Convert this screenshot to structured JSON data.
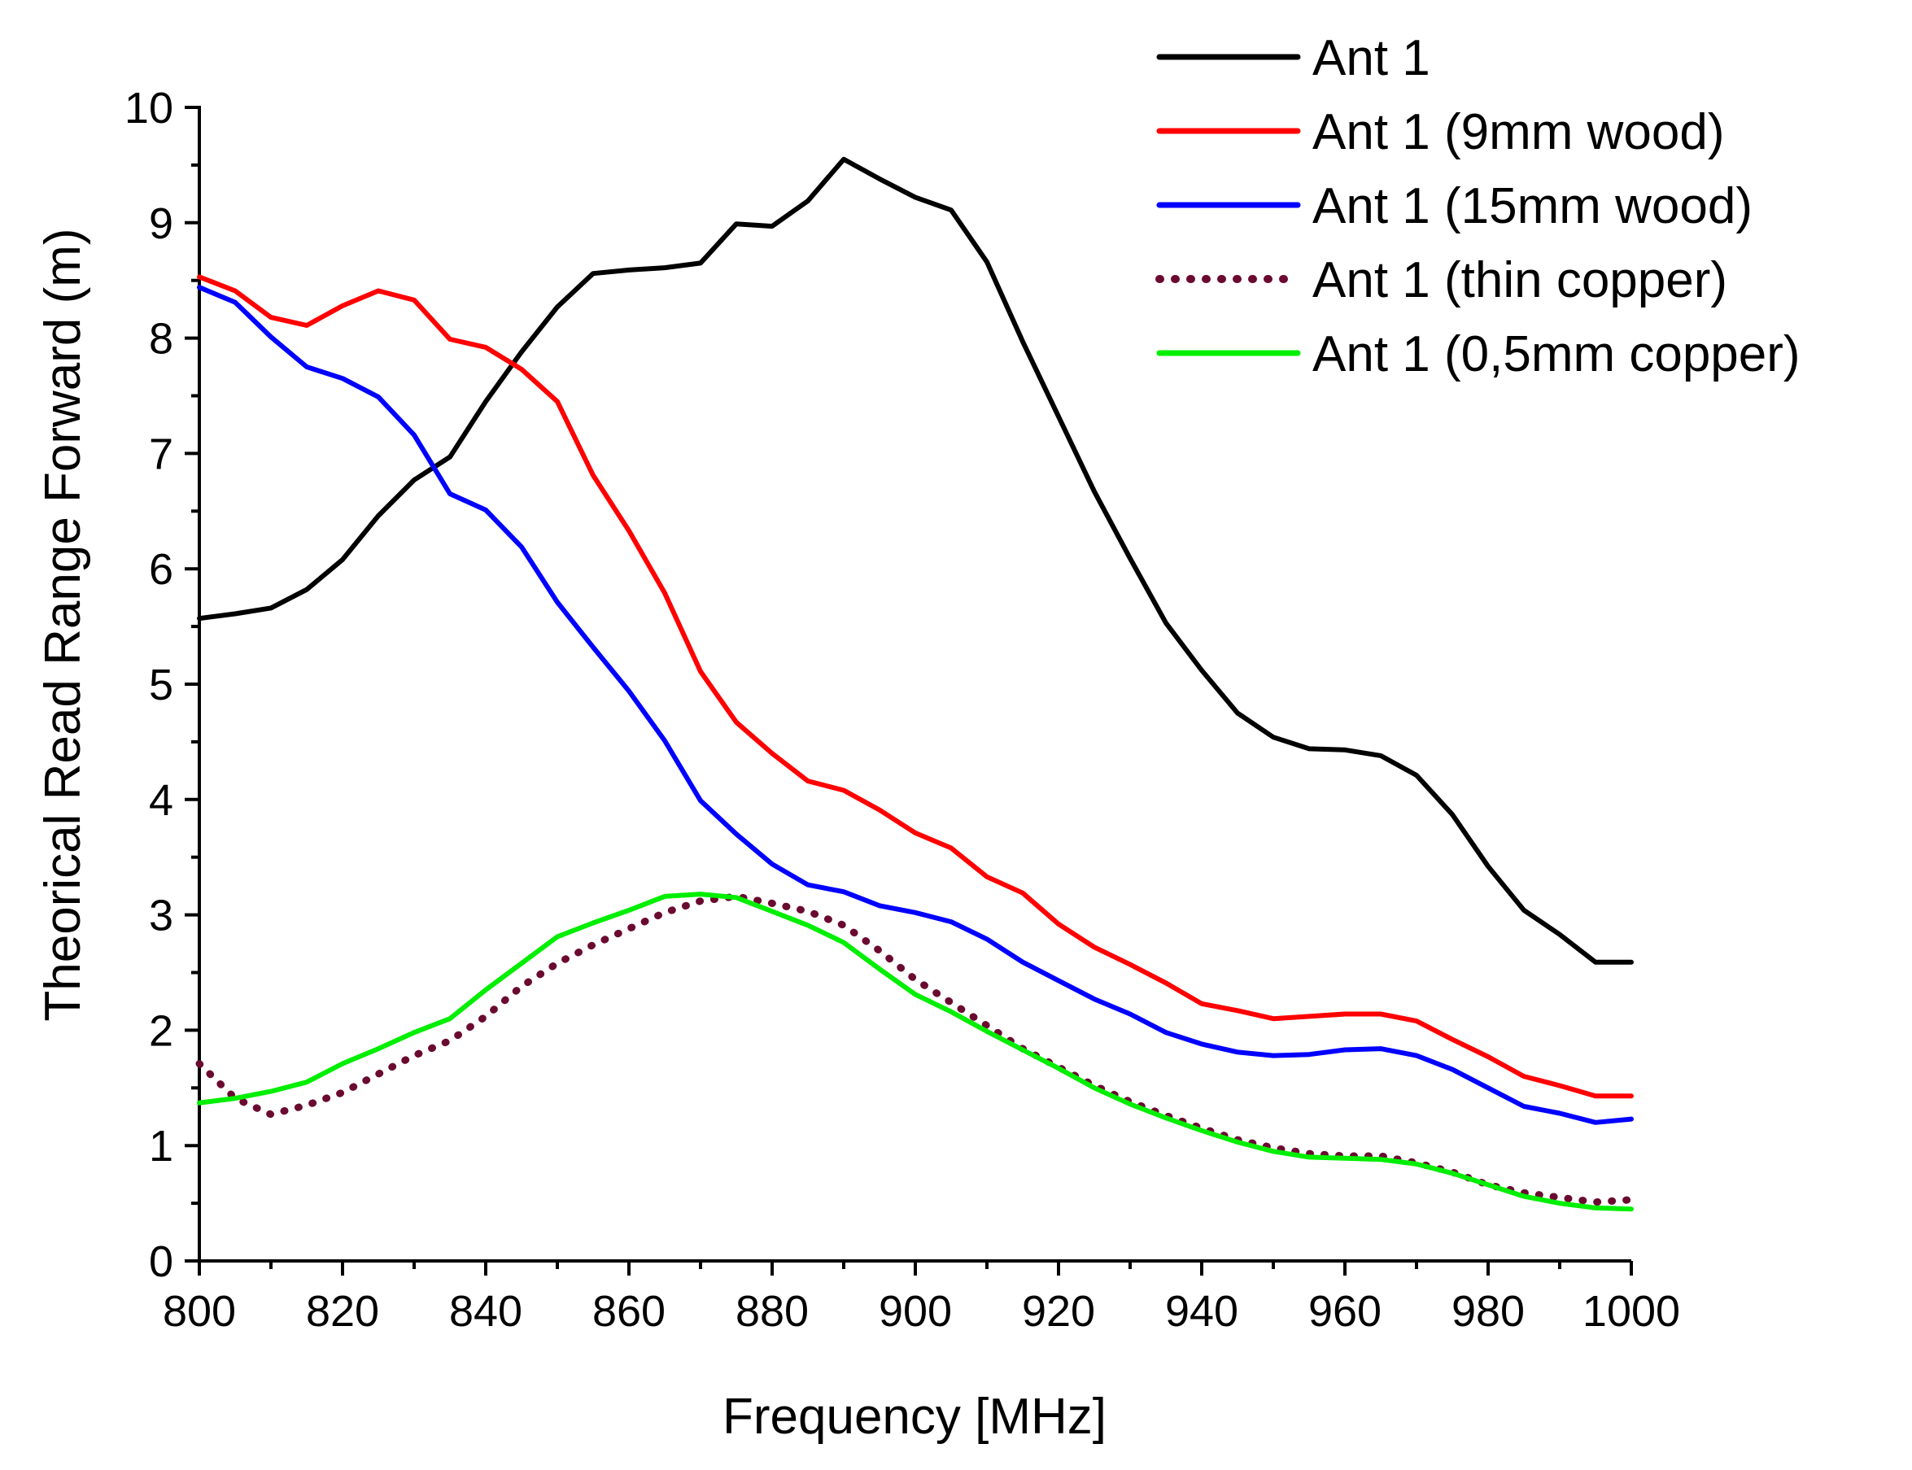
{
  "chart_data": {
    "type": "line",
    "title": "",
    "xlabel": "Frequency [MHz]",
    "ylabel": "Theorical Read Range Forward (m)",
    "xlim": [
      800,
      1000
    ],
    "ylim": [
      0,
      10
    ],
    "xticks": [
      800,
      820,
      840,
      860,
      880,
      900,
      920,
      940,
      960,
      980,
      1000
    ],
    "yticks": [
      0,
      1,
      2,
      3,
      4,
      5,
      6,
      7,
      8,
      9,
      10
    ],
    "x_tick_labels": [
      "800",
      "820",
      "840",
      "860",
      "880",
      "900",
      "920",
      "940",
      "960",
      "980",
      "1000"
    ],
    "y_tick_labels": [
      "0",
      "1",
      "2",
      "3",
      "4",
      "5",
      "6",
      "7",
      "8",
      "9",
      "10"
    ],
    "grid": false,
    "legend_position": "top-right",
    "x": [
      800,
      805,
      810,
      815,
      820,
      825,
      830,
      835,
      840,
      845,
      850,
      855,
      860,
      865,
      870,
      875,
      880,
      885,
      890,
      895,
      900,
      905,
      910,
      915,
      920,
      925,
      930,
      935,
      940,
      945,
      950,
      955,
      960,
      965,
      970,
      975,
      980,
      985,
      990,
      995,
      1000
    ],
    "series": [
      {
        "name": "Ant 1",
        "color": "#000000",
        "style": "solid",
        "values": [
          5.57,
          5.61,
          5.66,
          5.82,
          6.08,
          6.46,
          6.77,
          6.97,
          7.45,
          7.88,
          8.27,
          8.56,
          8.59,
          8.61,
          8.65,
          8.99,
          8.97,
          9.19,
          9.55,
          9.38,
          9.22,
          9.11,
          8.66,
          7.97,
          7.32,
          6.67,
          6.09,
          5.53,
          5.12,
          4.75,
          4.54,
          4.44,
          4.43,
          4.38,
          4.21,
          3.87,
          3.42,
          3.04,
          2.83,
          2.59,
          2.59
        ]
      },
      {
        "name": "Ant 1 (9mm wood)",
        "color": "#ff0000",
        "style": "solid",
        "values": [
          8.53,
          8.41,
          8.18,
          8.11,
          8.28,
          8.41,
          8.33,
          7.99,
          7.92,
          7.73,
          7.45,
          6.81,
          6.33,
          5.79,
          5.11,
          4.67,
          4.4,
          4.16,
          4.08,
          3.91,
          3.71,
          3.58,
          3.33,
          3.19,
          2.92,
          2.72,
          2.57,
          2.41,
          2.23,
          2.17,
          2.1,
          2.12,
          2.14,
          2.14,
          2.08,
          1.92,
          1.77,
          1.6,
          1.52,
          1.43,
          1.43
        ]
      },
      {
        "name": "Ant 1 (15mm wood)",
        "color": "#0000ff",
        "style": "solid",
        "values": [
          8.44,
          8.31,
          8.01,
          7.75,
          7.65,
          7.49,
          7.16,
          6.65,
          6.51,
          6.19,
          5.71,
          5.32,
          4.94,
          4.51,
          3.99,
          3.7,
          3.44,
          3.26,
          3.2,
          3.08,
          3.02,
          2.94,
          2.79,
          2.59,
          2.43,
          2.27,
          2.14,
          1.98,
          1.88,
          1.81,
          1.78,
          1.79,
          1.83,
          1.84,
          1.78,
          1.66,
          1.5,
          1.34,
          1.28,
          1.2,
          1.23
        ]
      },
      {
        "name": "Ant 1 (thin copper)",
        "color": "#6b0a30",
        "style": "dotted",
        "values": [
          1.71,
          1.41,
          1.27,
          1.35,
          1.46,
          1.62,
          1.78,
          1.91,
          2.12,
          2.38,
          2.58,
          2.74,
          2.88,
          3.02,
          3.12,
          3.16,
          3.1,
          3.03,
          2.91,
          2.69,
          2.44,
          2.24,
          2.04,
          1.84,
          1.68,
          1.52,
          1.38,
          1.26,
          1.15,
          1.05,
          0.98,
          0.93,
          0.91,
          0.91,
          0.85,
          0.77,
          0.66,
          0.59,
          0.55,
          0.51,
          0.53
        ]
      },
      {
        "name": "Ant 1 (0,5mm copper)",
        "color": "#00ee00",
        "style": "solid",
        "values": [
          1.37,
          1.41,
          1.47,
          1.55,
          1.71,
          1.84,
          1.98,
          2.1,
          2.35,
          2.58,
          2.81,
          2.93,
          3.04,
          3.16,
          3.18,
          3.15,
          3.03,
          2.91,
          2.76,
          2.53,
          2.31,
          2.16,
          1.99,
          1.83,
          1.67,
          1.5,
          1.36,
          1.24,
          1.13,
          1.03,
          0.95,
          0.9,
          0.89,
          0.88,
          0.84,
          0.76,
          0.66,
          0.56,
          0.5,
          0.46,
          0.45
        ]
      }
    ]
  }
}
